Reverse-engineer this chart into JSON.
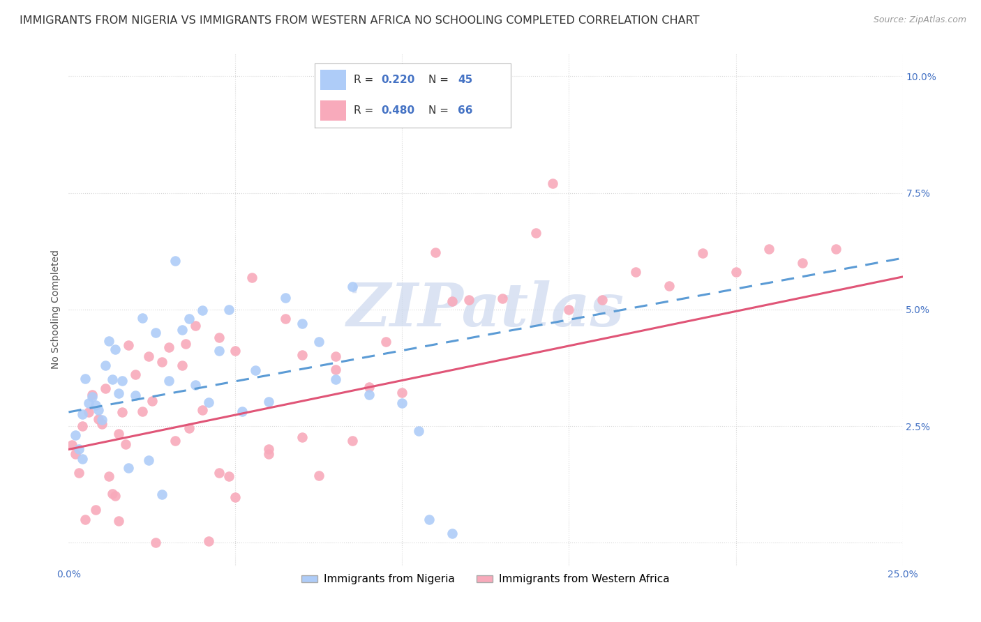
{
  "title": "IMMIGRANTS FROM NIGERIA VS IMMIGRANTS FROM WESTERN AFRICA NO SCHOOLING COMPLETED CORRELATION CHART",
  "source": "Source: ZipAtlas.com",
  "ylabel": "No Schooling Completed",
  "xlim": [
    0.0,
    0.25
  ],
  "ylim": [
    -0.005,
    0.105
  ],
  "nigeria_R": 0.22,
  "nigeria_N": 45,
  "western_R": 0.48,
  "western_N": 66,
  "nigeria_color": "#aeccf8",
  "western_color": "#f8aabb",
  "nigeria_line_color": "#5b9bd5",
  "western_line_color": "#e05577",
  "nigeria_label": "Immigrants from Nigeria",
  "western_label": "Immigrants from Western Africa",
  "watermark_text": "ZIPatlas",
  "watermark_color": "#ccd8ee",
  "background_color": "#ffffff",
  "grid_color": "#d8d8d8",
  "title_color": "#333333",
  "tick_color": "#4472c4",
  "ylabel_color": "#555555",
  "title_fontsize": 11.5,
  "tick_fontsize": 10,
  "ylabel_fontsize": 10,
  "legend_fontsize": 12,
  "source_text": "Source: ZipAtlas.com"
}
